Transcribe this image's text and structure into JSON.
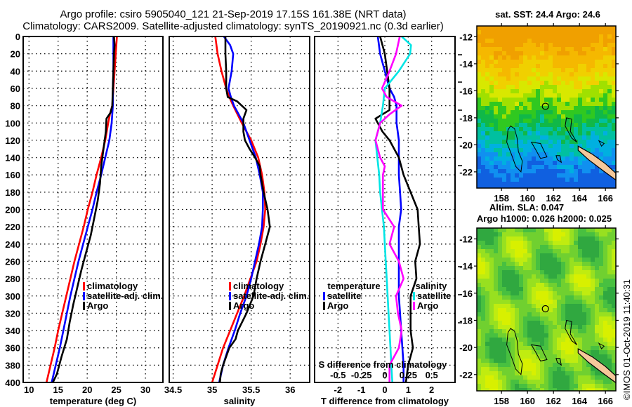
{
  "header": {
    "title_line1": "Argo profile: csiro 5905040_121 21-Sep-2019 17.15S 161.38E (NRT data)",
    "title_line2": "Climatology: CARS2009. Satellite-adjusted climatology: synTS_20190921.nc (0.3d earlier)"
  },
  "colors": {
    "climatology": "#ff0000",
    "satellite": "#0000ff",
    "argo": "#000000",
    "sal_satellite": "#00e5e5",
    "sal_argo": "#ff00ff",
    "land": "#f5c89a"
  },
  "chart_data": [
    {
      "type": "line",
      "name": "temperature-profile",
      "xlabel": "temperature (deg C)",
      "ylabel": "",
      "xlim": [
        9,
        33
      ],
      "ylim": [
        400,
        0
      ],
      "xticks": [
        10,
        15,
        20,
        25,
        30
      ],
      "yticks": [
        0,
        20,
        40,
        60,
        80,
        100,
        120,
        140,
        160,
        180,
        200,
        220,
        240,
        260,
        280,
        300,
        320,
        340,
        360,
        380,
        400
      ],
      "grid": true,
      "legend": {
        "position": "lower-right",
        "entries": [
          "climatology",
          "satellite-adj. clim.",
          "Argo"
        ]
      },
      "series": [
        {
          "name": "climatology",
          "color": "#ff0000",
          "depth": [
            0,
            20,
            40,
            60,
            80,
            90,
            100,
            120,
            140,
            160,
            180,
            200,
            220,
            240,
            260,
            280,
            300,
            320,
            340,
            360,
            380,
            400
          ],
          "values": [
            25.1,
            24.9,
            24.7,
            24.5,
            24.3,
            23.9,
            23.6,
            23.1,
            22.4,
            21.6,
            20.9,
            20.1,
            19.4,
            18.6,
            17.8,
            17.1,
            16.4,
            15.7,
            15.0,
            14.4,
            13.7,
            13.0
          ]
        },
        {
          "name": "satellite-adj. clim.",
          "color": "#0000ff",
          "depth": [
            0,
            20,
            40,
            60,
            80,
            100,
            120,
            140,
            160,
            180,
            200,
            220,
            240,
            260,
            280,
            300,
            320,
            340,
            360,
            380,
            400
          ],
          "values": [
            24.5,
            24.5,
            24.5,
            24.4,
            24.4,
            24.2,
            23.8,
            23.1,
            22.4,
            21.6,
            20.9,
            20.1,
            19.3,
            18.5,
            17.8,
            17.1,
            16.5,
            15.9,
            15.3,
            14.6,
            13.9
          ]
        },
        {
          "name": "Argo",
          "color": "#000000",
          "depth": [
            0,
            10,
            20,
            40,
            60,
            80,
            88,
            95,
            110,
            130,
            150,
            170,
            190,
            210,
            230,
            250,
            270,
            290,
            310,
            330,
            350,
            370,
            390,
            400
          ],
          "values": [
            24.6,
            24.7,
            24.6,
            24.5,
            24.4,
            24.3,
            24.0,
            23.3,
            23.2,
            22.8,
            22.4,
            22.2,
            21.8,
            21.2,
            20.6,
            19.8,
            19.0,
            18.3,
            17.6,
            17.0,
            16.5,
            15.6,
            14.8,
            14.1
          ]
        }
      ]
    },
    {
      "type": "line",
      "name": "salinity-profile",
      "xlabel": "salinity",
      "ylabel": "",
      "xlim": [
        34.45,
        36.25
      ],
      "ylim": [
        400,
        0
      ],
      "xticks": [
        34.5,
        35,
        35.5,
        36
      ],
      "xtick_labels": [
        "34.5",
        "35",
        "35.5",
        "36"
      ],
      "grid": true,
      "legend": {
        "position": "lower-right",
        "entries": [
          "climatology",
          "satellite-adj. clim.",
          "Argo"
        ]
      },
      "series": [
        {
          "name": "climatology",
          "color": "#ff0000",
          "depth": [
            0,
            20,
            40,
            60,
            70,
            80,
            100,
            120,
            140,
            160,
            180,
            200,
            220,
            240,
            260,
            280,
            300,
            320,
            340,
            360,
            380,
            400
          ],
          "values": [
            35.04,
            35.07,
            35.12,
            35.18,
            35.22,
            35.27,
            35.38,
            35.5,
            35.59,
            35.64,
            35.67,
            35.68,
            35.66,
            35.62,
            35.57,
            35.49,
            35.41,
            35.32,
            35.23,
            35.14,
            35.07,
            35.0
          ]
        },
        {
          "name": "satellite-adj. clim.",
          "color": "#0000ff",
          "depth": [
            0,
            10,
            20,
            40,
            60,
            70,
            80,
            100,
            120,
            140,
            160,
            180,
            200,
            220,
            240,
            260,
            280,
            300,
            320,
            340,
            360,
            380,
            400
          ],
          "values": [
            35.15,
            35.23,
            35.27,
            35.25,
            35.21,
            35.24,
            35.28,
            35.4,
            35.48,
            35.56,
            35.61,
            35.65,
            35.65,
            35.64,
            35.6,
            35.55,
            35.5,
            35.44,
            35.36,
            35.29,
            35.21,
            35.14,
            35.09
          ]
        },
        {
          "name": "Argo",
          "color": "#000000",
          "depth": [
            0,
            20,
            40,
            60,
            70,
            75,
            80,
            85,
            90,
            95,
            100,
            110,
            120,
            130,
            140,
            150,
            160,
            180,
            200,
            220,
            230,
            240,
            260,
            280,
            300,
            320,
            340,
            350,
            360,
            380,
            390,
            400
          ],
          "values": [
            35.17,
            35.17,
            35.18,
            35.18,
            35.2,
            35.32,
            35.38,
            35.44,
            35.42,
            35.4,
            35.4,
            35.4,
            35.42,
            35.48,
            35.55,
            35.61,
            35.62,
            35.66,
            35.71,
            35.74,
            35.71,
            35.68,
            35.62,
            35.57,
            35.53,
            35.44,
            35.33,
            35.3,
            35.22,
            35.14,
            35.11,
            35.1
          ]
        }
      ]
    },
    {
      "type": "line",
      "name": "difference-profile",
      "xlabel": "T difference from climatology",
      "x2label": "S difference from climatology",
      "xlim": [
        -3,
        3
      ],
      "x2lim": [
        -0.75,
        0.75
      ],
      "ylim": [
        400,
        0
      ],
      "xticks": [
        -2,
        -1,
        0,
        1,
        2
      ],
      "x2ticks": [
        -0.5,
        -0.25,
        0,
        0.25,
        0.5
      ],
      "grid": true,
      "legend": {
        "position": "lower-center",
        "groups": [
          {
            "title": "temperature",
            "entries": [
              "satellite",
              "Argo"
            ]
          },
          {
            "title": "salinity",
            "entries": [
              "satellite",
              "Argo"
            ]
          }
        ]
      },
      "series": [
        {
          "name": "temperature satellite",
          "axis": "T",
          "color": "#0000ff",
          "depth": [
            0,
            20,
            40,
            60,
            70,
            80,
            90,
            100,
            120,
            140,
            160,
            180,
            200,
            220,
            240,
            260,
            280,
            300,
            320,
            340,
            360,
            380,
            400
          ],
          "values": [
            -0.3,
            -0.2,
            0,
            0.2,
            0.4,
            0.5,
            0.5,
            0.5,
            0.6,
            0.6,
            0.6,
            0.65,
            0.7,
            0.6,
            0.6,
            0.6,
            0.6,
            0.6,
            0.65,
            0.7,
            0.75,
            0.8,
            0.8
          ]
        },
        {
          "name": "temperature Argo",
          "axis": "T",
          "color": "#000000",
          "depth": [
            0,
            20,
            40,
            60,
            75,
            85,
            90,
            95,
            100,
            110,
            120,
            140,
            160,
            180,
            200,
            220,
            240,
            260,
            280,
            300,
            320,
            340,
            360,
            380,
            400
          ],
          "values": [
            -0.2,
            0,
            0.1,
            0.2,
            0.2,
            0.2,
            -0.1,
            -0.4,
            -0.3,
            -0.1,
            0.2,
            0.6,
            0.8,
            1.1,
            1.4,
            1.45,
            1.5,
            1.3,
            1.35,
            1.1,
            1.1,
            1.1,
            1.2,
            1.0,
            0.9
          ]
        },
        {
          "name": "salinity satellite",
          "axis": "S",
          "color": "#00e5e5",
          "depth": [
            0,
            10,
            20,
            40,
            60,
            80,
            100,
            120,
            140,
            160,
            180,
            200,
            220,
            240,
            260,
            280,
            300,
            320,
            340,
            360,
            380,
            400
          ],
          "values": [
            0.18,
            0.28,
            0.27,
            0.15,
            0.0,
            -0.02,
            -0.05,
            -0.1,
            -0.08,
            -0.06,
            -0.05,
            -0.03,
            -0.01,
            0.0,
            0.01,
            0.02,
            0.03,
            0.04,
            0.05,
            0.06,
            0.07,
            0.08
          ]
        },
        {
          "name": "salinity Argo",
          "axis": "S",
          "color": "#ff00ff",
          "depth": [
            0,
            20,
            40,
            60,
            70,
            80,
            90,
            100,
            120,
            140,
            150,
            160,
            180,
            200,
            220,
            240,
            260,
            280,
            300,
            320,
            340,
            360,
            380,
            400
          ],
          "values": [
            0.16,
            0.12,
            0.05,
            -0.03,
            0.02,
            0.18,
            0.05,
            -0.05,
            -0.1,
            -0.05,
            0.0,
            -0.02,
            -0.02,
            -0.02,
            0.1,
            0.05,
            0.15,
            0.2,
            0.12,
            0.14,
            0.18,
            0.15,
            0.05,
            0.05
          ]
        }
      ]
    },
    {
      "type": "heatmap",
      "name": "sst-map",
      "title": "sat. SST: 24.4 Argo: 24.6",
      "xticks": [
        158,
        160,
        162,
        164,
        166
      ],
      "yticks": [
        -12,
        -14,
        -16,
        -18,
        -20,
        -22
      ],
      "xlim": [
        156.1,
        166.8
      ],
      "ylim": [
        -23.2,
        -11.2
      ],
      "marker": {
        "lon": 161.38,
        "lat": -17.15
      }
    },
    {
      "type": "heatmap",
      "name": "sla-map",
      "title_line1": "Altim. SLA: 0.047",
      "title_line2": "Argo h1000: 0.026 h2000: 0.025",
      "xticks": [
        158,
        160,
        162,
        164,
        166
      ],
      "yticks": [
        -12,
        -14,
        -16,
        -18,
        -20,
        -22
      ],
      "xlim": [
        156.1,
        166.8
      ],
      "ylim": [
        -23.2,
        -11.2
      ],
      "marker": {
        "lon": 161.38,
        "lat": -17.15
      }
    }
  ],
  "legend_labels": {
    "climatology": "climatology",
    "satellite_adj": "satellite-adj. clim.",
    "argo": "Argo",
    "temperature": "temperature",
    "salinity": "salinity",
    "satellite": "satellite"
  },
  "footer": {
    "stamp": "©IMOS 01-Oct-2019 11:40:31"
  }
}
